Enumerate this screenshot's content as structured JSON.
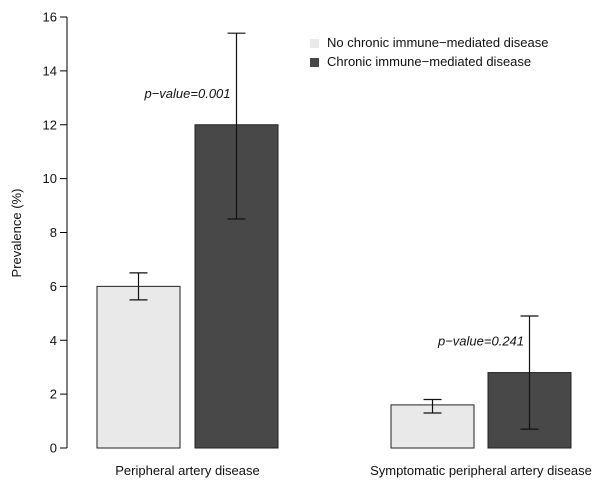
{
  "chart_data": {
    "type": "bar",
    "title": "",
    "xlabel": "",
    "ylabel": "Prevalence (%)",
    "ylim": [
      0,
      16
    ],
    "yticks": [
      0,
      2,
      4,
      6,
      8,
      10,
      12,
      14,
      16
    ],
    "grid": false,
    "legend_position": "top-right",
    "categories": [
      "Peripheral artery disease",
      "Symptomatic peripheral artery disease"
    ],
    "series": [
      {
        "name": "No chronic immune−mediated disease",
        "color": "#e9e9e9",
        "values": [
          6.0,
          1.6
        ],
        "error_low": [
          5.5,
          1.3
        ],
        "error_high": [
          6.5,
          1.8
        ]
      },
      {
        "name": "Chronic immune−mediated disease",
        "color": "#484848",
        "values": [
          12.0,
          2.8
        ],
        "error_low": [
          8.5,
          0.7
        ],
        "error_high": [
          15.4,
          4.9
        ]
      }
    ],
    "annotations": [
      {
        "text": "p−value=0.001",
        "category": 0,
        "y": 13.0
      },
      {
        "text": "p−value=0.241",
        "category": 1,
        "y": 3.8
      }
    ]
  }
}
